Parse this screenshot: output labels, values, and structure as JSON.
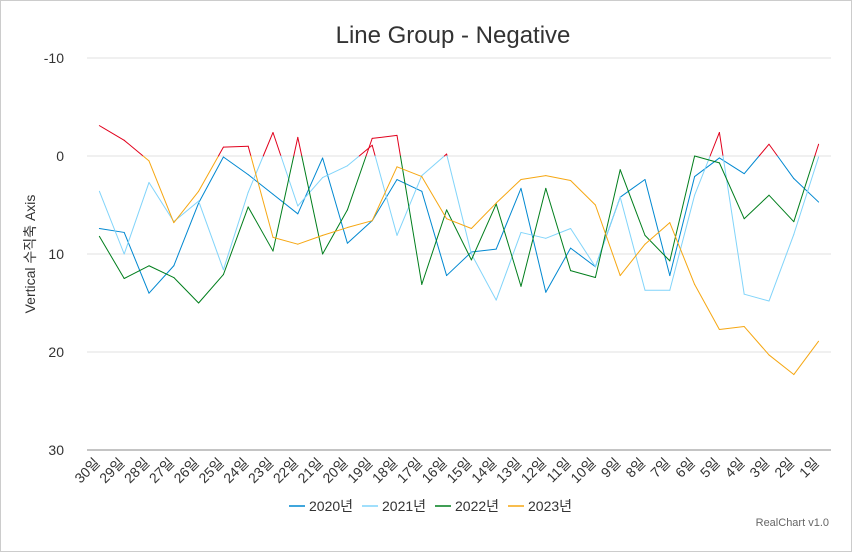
{
  "chart_data": {
    "type": "line",
    "title": "Line Group - Negative",
    "xlabel": "",
    "ylabel": "Vertical 수직축 Axis",
    "y_reversed": true,
    "ylim": [
      -10,
      30
    ],
    "yticks": [
      -10,
      0,
      10,
      20,
      30
    ],
    "grid": true,
    "legend_position": "bottom",
    "categories": [
      "30일",
      "29일",
      "28일",
      "27일",
      "26일",
      "25일",
      "24일",
      "23일",
      "22일",
      "21일",
      "20일",
      "19일",
      "18일",
      "17일",
      "16일",
      "15일",
      "14일",
      "13일",
      "12일",
      "11일",
      "10일",
      "9일",
      "8일",
      "7일",
      "6일",
      "5일",
      "4일",
      "3일",
      "2일",
      "1일"
    ],
    "series": [
      {
        "name": "2020년",
        "color": "#0088d1",
        "values": [
          7.4,
          7.8,
          14.0,
          11.2,
          4.8,
          0.1,
          1.9,
          3.9,
          5.9,
          0.2,
          8.9,
          6.6,
          2.4,
          3.6,
          12.2,
          9.8,
          9.5,
          3.3,
          13.9,
          9.4,
          11.3,
          4.2,
          2.4,
          12.2,
          2.1,
          0.2,
          1.8,
          -1.2,
          2.3,
          4.7
        ]
      },
      {
        "name": "2021년",
        "color": "#81d4fa",
        "values": [
          3.6,
          10.0,
          2.7,
          6.7,
          4.6,
          11.6,
          3.7,
          -2.4,
          5.1,
          2.2,
          1.0,
          -1.1,
          8.1,
          2.0,
          -0.2,
          10.0,
          14.7,
          7.8,
          8.4,
          7.4,
          11.3,
          4.2,
          13.7,
          13.7,
          4.0,
          -2.4,
          14.1,
          14.8,
          8.0,
          0.1
        ]
      },
      {
        "name": "2022년",
        "color": "#007e1c",
        "values": [
          8.2,
          12.5,
          11.2,
          12.4,
          15.0,
          12.1,
          5.2,
          9.7,
          -1.9,
          10.0,
          5.5,
          -1.8,
          -2.1,
          13.1,
          5.5,
          10.6,
          4.9,
          13.3,
          3.3,
          11.7,
          12.4,
          1.4,
          8.1,
          10.7,
          0.0,
          0.7,
          6.4,
          4.0,
          6.7,
          -1.2
        ]
      },
      {
        "name": "2023년",
        "color": "#f6a712",
        "values": [
          -3.1,
          -1.6,
          0.5,
          6.8,
          3.6,
          -0.9,
          -1.0,
          8.3,
          9.0,
          8.1,
          7.3,
          6.6,
          1.1,
          2.1,
          6.4,
          7.4,
          4.8,
          2.4,
          2.0,
          2.5,
          5.0,
          12.2,
          9.0,
          6.8,
          13.1,
          17.7,
          17.4,
          20.3,
          22.3,
          18.9
        ]
      }
    ],
    "highlight": {
      "color": "#e1001c",
      "description": "line segments above 0 on the reversed axis drawn in red"
    }
  },
  "footer": {
    "credit": "RealChart v1.0"
  }
}
